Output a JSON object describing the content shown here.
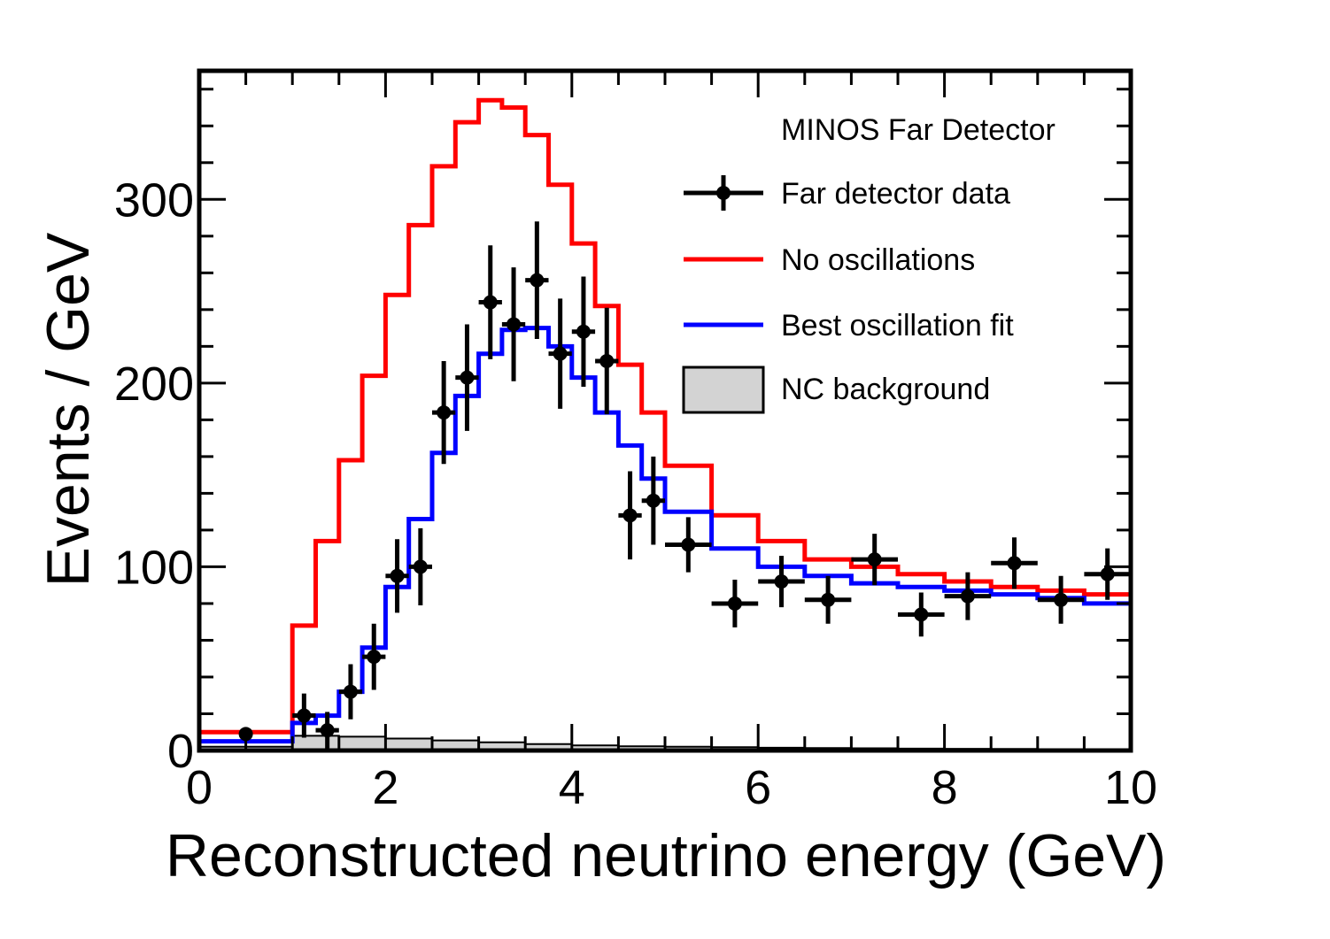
{
  "chart_data": {
    "type": "histogram",
    "title": "",
    "xlabel": "Reconstructed neutrino energy (GeV)",
    "ylabel": "Events / GeV",
    "xlim": [
      0,
      10
    ],
    "ylim": [
      0,
      370
    ],
    "x_ticks": [
      0,
      2,
      4,
      6,
      8,
      10
    ],
    "y_ticks": [
      0,
      100,
      200,
      300
    ],
    "x_minor_step": 0.5,
    "y_minor_step": 20,
    "grid": false,
    "legend_position": "top-right",
    "legend_header": "MINOS Far Detector",
    "series": [
      {
        "name": "Far detector data",
        "kind": "points",
        "color": "#000000",
        "points": [
          {
            "x": 0.5,
            "y": 9,
            "xerr": 0.0,
            "yerr": 0
          },
          {
            "x": 1.125,
            "y": 19,
            "xerr": 0.125,
            "yerr": 12
          },
          {
            "x": 1.375,
            "y": 11,
            "xerr": 0.125,
            "yerr": 10
          },
          {
            "x": 1.625,
            "y": 32,
            "xerr": 0.125,
            "yerr": 15
          },
          {
            "x": 1.875,
            "y": 51,
            "xerr": 0.125,
            "yerr": 18
          },
          {
            "x": 2.125,
            "y": 95,
            "xerr": 0.125,
            "yerr": 20
          },
          {
            "x": 2.375,
            "y": 100,
            "xerr": 0.125,
            "yerr": 21
          },
          {
            "x": 2.625,
            "y": 184,
            "xerr": 0.125,
            "yerr": 28
          },
          {
            "x": 2.875,
            "y": 203,
            "xerr": 0.125,
            "yerr": 29
          },
          {
            "x": 3.125,
            "y": 244,
            "xerr": 0.125,
            "yerr": 31
          },
          {
            "x": 3.375,
            "y": 232,
            "xerr": 0.125,
            "yerr": 31
          },
          {
            "x": 3.625,
            "y": 256,
            "xerr": 0.125,
            "yerr": 32
          },
          {
            "x": 3.875,
            "y": 216,
            "xerr": 0.125,
            "yerr": 30
          },
          {
            "x": 4.125,
            "y": 228,
            "xerr": 0.125,
            "yerr": 30
          },
          {
            "x": 4.375,
            "y": 212,
            "xerr": 0.125,
            "yerr": 29
          },
          {
            "x": 4.625,
            "y": 128,
            "xerr": 0.125,
            "yerr": 24
          },
          {
            "x": 4.875,
            "y": 136,
            "xerr": 0.125,
            "yerr": 24
          },
          {
            "x": 5.25,
            "y": 112,
            "xerr": 0.25,
            "yerr": 15
          },
          {
            "x": 5.75,
            "y": 80,
            "xerr": 0.25,
            "yerr": 13
          },
          {
            "x": 6.25,
            "y": 92,
            "xerr": 0.25,
            "yerr": 14
          },
          {
            "x": 6.75,
            "y": 82,
            "xerr": 0.25,
            "yerr": 13
          },
          {
            "x": 7.25,
            "y": 104,
            "xerr": 0.25,
            "yerr": 14
          },
          {
            "x": 7.75,
            "y": 74,
            "xerr": 0.25,
            "yerr": 12
          },
          {
            "x": 8.25,
            "y": 84,
            "xerr": 0.25,
            "yerr": 13
          },
          {
            "x": 8.75,
            "y": 102,
            "xerr": 0.25,
            "yerr": 14
          },
          {
            "x": 9.25,
            "y": 82,
            "xerr": 0.25,
            "yerr": 13
          },
          {
            "x": 9.75,
            "y": 96,
            "xerr": 0.25,
            "yerr": 14
          }
        ]
      },
      {
        "name": "No oscillations",
        "kind": "step",
        "color": "#ff0000",
        "edges": [
          0,
          1,
          1.25,
          1.5,
          1.75,
          2,
          2.25,
          2.5,
          2.75,
          3,
          3.25,
          3.5,
          3.75,
          4,
          4.25,
          4.5,
          4.75,
          5,
          5.5,
          6,
          6.5,
          7,
          7.5,
          8,
          8.5,
          9,
          9.5,
          10
        ],
        "values": [
          10,
          68,
          114,
          158,
          204,
          248,
          286,
          318,
          342,
          354,
          350,
          335,
          308,
          276,
          242,
          210,
          184,
          155,
          128,
          114,
          104,
          100,
          96,
          92,
          89,
          87,
          85
        ]
      },
      {
        "name": "Best oscillation fit",
        "kind": "step",
        "color": "#0000ff",
        "edges": [
          0,
          1,
          1.25,
          1.5,
          1.75,
          2,
          2.25,
          2.5,
          2.75,
          3,
          3.25,
          3.5,
          3.75,
          4,
          4.25,
          4.5,
          4.75,
          5,
          5.5,
          6,
          6.5,
          7,
          7.5,
          8,
          8.5,
          9,
          9.5,
          10
        ],
        "values": [
          5,
          15,
          19,
          32,
          56,
          89,
          126,
          162,
          193,
          216,
          229,
          230,
          220,
          203,
          184,
          166,
          148,
          130,
          110,
          100,
          95,
          91,
          89,
          87,
          85,
          83,
          80
        ]
      },
      {
        "name": "NC background",
        "kind": "filled-step",
        "color": "#000000",
        "fill": "#d3d3d3",
        "edges": [
          0,
          1,
          1.5,
          2,
          2.5,
          3,
          3.5,
          4,
          4.5,
          5,
          5.5,
          6,
          6.5,
          7,
          7.5,
          8,
          8.5,
          9,
          9.5,
          10
        ],
        "values": [
          2,
          8,
          7.5,
          6.5,
          5.5,
          4.5,
          3.5,
          2.8,
          2.3,
          2,
          1.8,
          1.5,
          1.3,
          1.2,
          1.0,
          0.9,
          0.8,
          0.7,
          0.6
        ]
      }
    ]
  }
}
